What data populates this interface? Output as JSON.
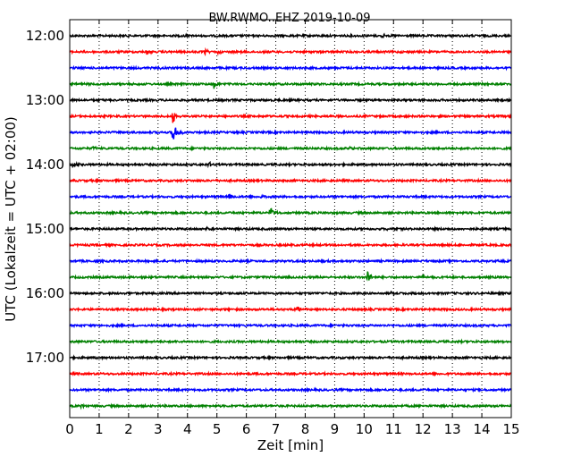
{
  "chart_data": {
    "type": "line",
    "title": "BW.RWMO..EHZ 2019-10-09",
    "xlabel": "Zeit  [min]",
    "ylabel": "UTC (Lokalzeit = UTC + 02:00)",
    "xlim": [
      0,
      15
    ],
    "x_ticks": [
      "0",
      "1",
      "2",
      "3",
      "4",
      "5",
      "6",
      "7",
      "8",
      "9",
      "10",
      "11",
      "12",
      "13",
      "14",
      "15"
    ],
    "y_tick_labels": [
      "12:00",
      "13:00",
      "14:00",
      "15:00",
      "16:00",
      "17:00"
    ],
    "grid": "vertical dotted",
    "trace_colors": [
      "#000000",
      "#ff0000",
      "#0000ff",
      "#008000"
    ],
    "traces": [
      {
        "start": "12:00",
        "events": [
          {
            "t": 3.8,
            "amp": 0.2
          },
          {
            "t": 10.6,
            "amp": 0.2
          }
        ]
      },
      {
        "start": "12:15",
        "events": [
          {
            "t": 2.6,
            "amp": 0.25
          },
          {
            "t": 4.6,
            "amp": 0.3
          },
          {
            "t": 5.0,
            "amp": 0.2
          }
        ]
      },
      {
        "start": "12:30",
        "events": [
          {
            "t": 3.0,
            "amp": 0.15
          }
        ]
      },
      {
        "start": "12:45",
        "events": [
          {
            "t": 4.9,
            "amp": 0.5
          }
        ]
      },
      {
        "start": "13:00",
        "events": []
      },
      {
        "start": "13:15",
        "events": [
          {
            "t": 3.5,
            "amp": 0.6
          }
        ]
      },
      {
        "start": "13:30",
        "events": [
          {
            "t": 3.5,
            "amp": 1.4
          }
        ]
      },
      {
        "start": "13:45",
        "events": [
          {
            "t": 0.8,
            "amp": 0.15
          },
          {
            "t": 9.5,
            "amp": 0.15
          }
        ]
      },
      {
        "start": "14:00",
        "events": [
          {
            "t": 0.1,
            "amp": 0.3
          },
          {
            "t": 4.7,
            "amp": 0.25
          }
        ]
      },
      {
        "start": "14:15",
        "events": []
      },
      {
        "start": "14:30",
        "events": [
          {
            "t": 5.4,
            "amp": 0.25
          },
          {
            "t": 6.5,
            "amp": 0.15
          }
        ]
      },
      {
        "start": "14:45",
        "events": [
          {
            "t": 6.8,
            "amp": 0.6
          }
        ]
      },
      {
        "start": "15:00",
        "events": [
          {
            "t": 4.6,
            "amp": 0.2
          },
          {
            "t": 10.8,
            "amp": 0.2
          }
        ]
      },
      {
        "start": "15:15",
        "events": []
      },
      {
        "start": "15:30",
        "events": []
      },
      {
        "start": "15:45",
        "events": [
          {
            "t": 10.1,
            "amp": 0.6
          },
          {
            "t": 12.0,
            "amp": 0.15
          }
        ]
      },
      {
        "start": "16:00",
        "events": [
          {
            "t": 10.9,
            "amp": 0.15
          }
        ]
      },
      {
        "start": "16:15",
        "events": [
          {
            "t": 7.7,
            "amp": 0.3
          }
        ]
      },
      {
        "start": "16:30",
        "events": []
      },
      {
        "start": "16:45",
        "events": []
      },
      {
        "start": "17:00",
        "events": []
      },
      {
        "start": "17:15",
        "events": []
      },
      {
        "start": "17:30",
        "events": []
      },
      {
        "start": "17:45",
        "events": [
          {
            "t": 0.4,
            "amp": 0.15
          }
        ]
      }
    ]
  }
}
